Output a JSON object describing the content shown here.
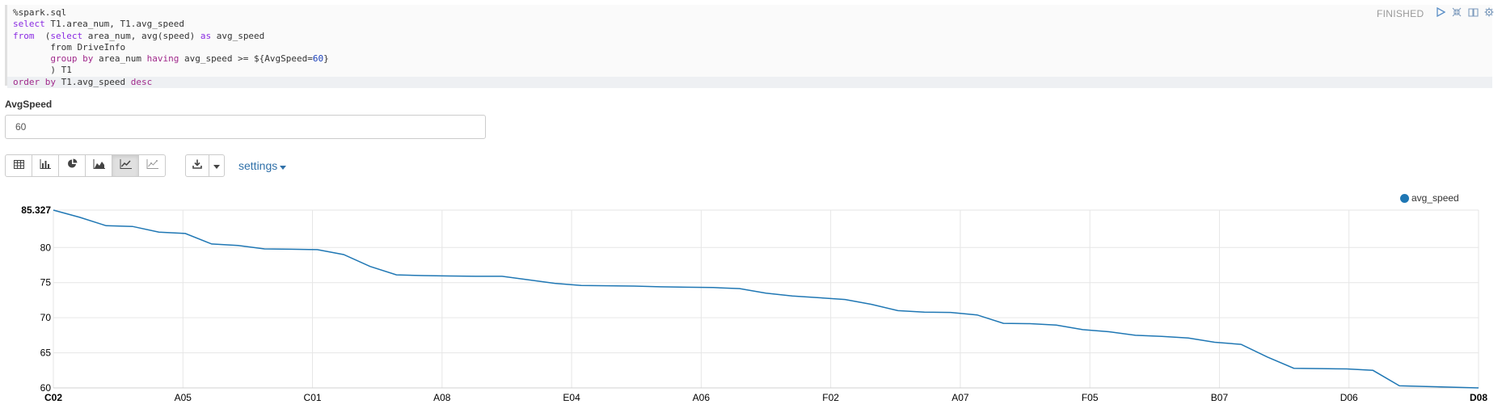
{
  "paragraph": {
    "status": "FINISHED",
    "code": {
      "l1": "%spark.sql",
      "l2_kw": "select",
      "l2_rest": " T1.area_num, T1.avg_speed",
      "l3_kw": "from",
      "l3_a": "  (",
      "l3_kw2": "select",
      "l3_b": " area_num, avg(speed) ",
      "l3_kw3": "as",
      "l3_c": " avg_speed",
      "l4_a": "       from DriveInfo",
      "l5_indent": "       ",
      "l5_kw": "group by",
      "l5_a": " area_num ",
      "l5_kw2": "having",
      "l5_b": " avg_speed >= ${AvgSpeed=",
      "l5_num": "60",
      "l5_c": "}",
      "l6": "       ) T1",
      "l7_kw": "order by",
      "l7_a": " T1.avg_speed ",
      "l7_kw2": "desc"
    }
  },
  "form": {
    "label": "AvgSpeed",
    "value": "60"
  },
  "toolbar": {
    "viz_buttons": [
      "table-icon",
      "bar-chart-icon",
      "pie-chart-icon",
      "area-chart-icon",
      "line-chart-icon",
      "scatter-chart-icon"
    ],
    "active": "line-chart-icon",
    "settings_label": "settings"
  },
  "colors": {
    "series": "#1f77b4",
    "link": "#3071a9"
  },
  "chart_data": {
    "type": "line",
    "legend": "avg_speed",
    "ylim": [
      60,
      85.327
    ],
    "y_ticks": [
      "85.327",
      "80",
      "75",
      "70",
      "65",
      "60"
    ],
    "x_tick_labels": [
      "C02",
      "A05",
      "C01",
      "A08",
      "E04",
      "A06",
      "F02",
      "A07",
      "F05",
      "B07",
      "D06",
      "D08"
    ],
    "values": [
      85.327,
      84.3,
      83.1,
      83.0,
      82.2,
      82.0,
      80.5,
      80.3,
      79.8,
      79.75,
      79.7,
      79.0,
      77.3,
      76.1,
      76.0,
      75.95,
      75.9,
      75.9,
      75.4,
      74.9,
      74.6,
      74.55,
      74.5,
      74.4,
      74.35,
      74.3,
      74.15,
      73.5,
      73.1,
      72.85,
      72.6,
      71.9,
      71.0,
      70.8,
      70.75,
      70.4,
      69.2,
      69.15,
      68.95,
      68.3,
      68.0,
      67.5,
      67.35,
      67.1,
      66.5,
      66.2,
      64.4,
      62.8,
      62.75,
      62.7,
      62.5,
      60.3,
      60.2,
      60.1,
      60.0
    ]
  }
}
